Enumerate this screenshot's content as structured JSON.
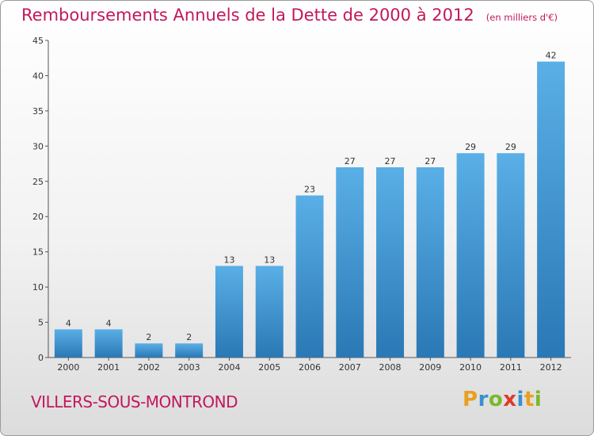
{
  "header": {
    "title": "Remboursements Annuels de la Dette de 2000 à 2012",
    "unit": "(en milliers d'€)"
  },
  "footer": {
    "commune": "VILLERS-SOUS-MONTROND",
    "logo": [
      "P",
      "r",
      "o",
      "x",
      "i",
      "t",
      "i"
    ]
  },
  "colors": {
    "title": "#c2185b",
    "bar_light": "#5aafe6",
    "bar_dark": "#2a78b5",
    "logo": [
      "#e8a020",
      "#3a8fd0",
      "#7ab82a",
      "#e03a2a",
      "#3a8fd0",
      "#e8a020",
      "#7ab82a"
    ]
  },
  "chart_data": {
    "type": "bar",
    "title": "Remboursements Annuels de la Dette de 2000 à 2012",
    "unit": "(en milliers d'€)",
    "categories": [
      "2000",
      "2001",
      "2002",
      "2003",
      "2004",
      "2005",
      "2006",
      "2007",
      "2008",
      "2009",
      "2010",
      "2011",
      "2012"
    ],
    "values": [
      4,
      4,
      2,
      2,
      13,
      13,
      23,
      27,
      27,
      27,
      29,
      29,
      42
    ],
    "ylim": [
      0,
      45
    ],
    "yticks": [
      0,
      5,
      10,
      15,
      20,
      25,
      30,
      35,
      40,
      45
    ],
    "grid": false,
    "legend": "none"
  }
}
